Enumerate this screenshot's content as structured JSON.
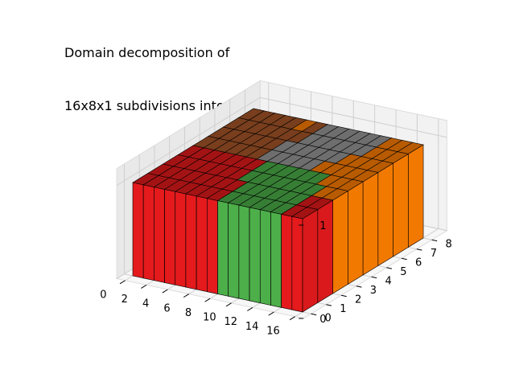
{
  "chart_data": {
    "type": "bar3d",
    "title": [
      "Domain decomposition of",
      "16x8x1 subdivisions into 5 partitions"
    ],
    "xlabel": "",
    "ylabel": "",
    "zlabel": "",
    "xlim": [
      0,
      16
    ],
    "ylim": [
      0,
      8
    ],
    "zlim": [
      0,
      1
    ],
    "x_ticks": [
      0,
      2,
      4,
      6,
      8,
      10,
      12,
      14,
      16
    ],
    "y_ticks": [
      0,
      1,
      2,
      3,
      4,
      5,
      6,
      7,
      8
    ],
    "z_ticks": [
      0,
      1
    ],
    "grid": true,
    "bar_height": 1,
    "partition_colors": [
      "#e41a1c",
      "#4daf4a",
      "#ff7f00",
      "#999999",
      "#a65628"
    ],
    "grid_size": [
      16,
      8
    ],
    "partition_map_rows_y0_to_y7": [
      [
        0,
        0,
        0,
        0,
        0,
        0,
        0,
        0,
        1,
        1,
        1,
        1,
        1,
        1,
        0,
        0
      ],
      [
        0,
        0,
        0,
        0,
        0,
        0,
        0,
        0,
        1,
        1,
        1,
        1,
        1,
        1,
        0,
        0
      ],
      [
        0,
        0,
        0,
        0,
        0,
        0,
        0,
        1,
        1,
        1,
        1,
        1,
        1,
        1,
        2,
        2
      ],
      [
        0,
        0,
        0,
        0,
        0,
        0,
        0,
        1,
        1,
        1,
        1,
        1,
        1,
        2,
        2,
        2
      ],
      [
        4,
        4,
        4,
        4,
        4,
        4,
        3,
        3,
        3,
        3,
        3,
        2,
        2,
        2,
        2,
        2
      ],
      [
        4,
        4,
        4,
        4,
        4,
        4,
        3,
        3,
        3,
        3,
        3,
        3,
        2,
        2,
        2,
        2
      ],
      [
        4,
        4,
        4,
        4,
        4,
        4,
        4,
        3,
        3,
        3,
        3,
        3,
        3,
        2,
        2,
        2
      ],
      [
        4,
        4,
        4,
        4,
        4,
        2,
        4,
        3,
        3,
        3,
        3,
        3,
        3,
        2,
        2,
        2
      ]
    ]
  }
}
